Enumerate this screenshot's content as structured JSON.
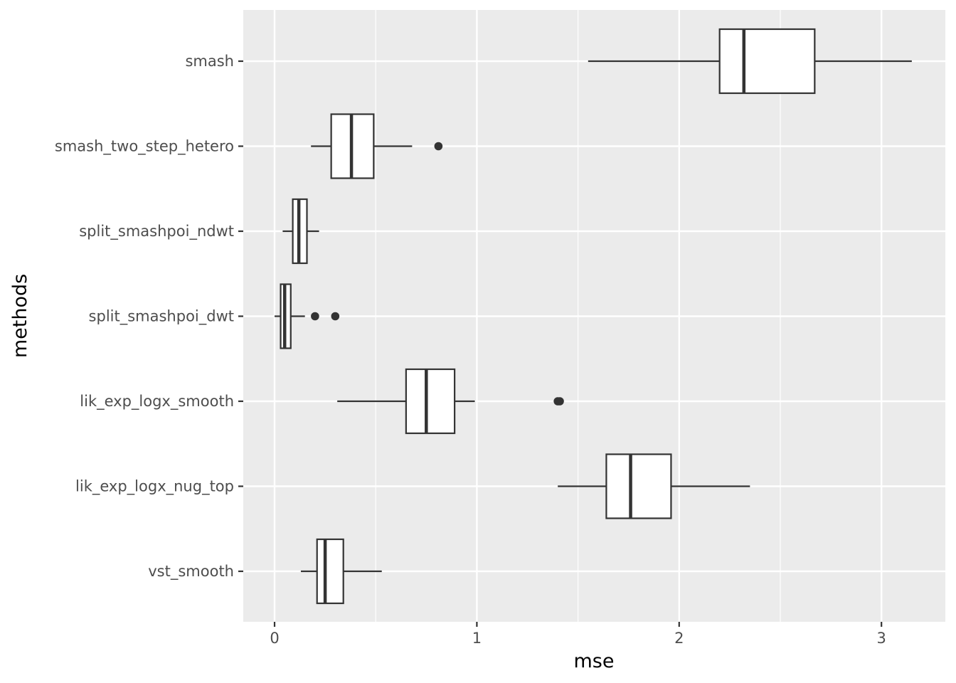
{
  "chart_data": {
    "type": "boxplot",
    "orientation": "horizontal",
    "xlabel": "mse",
    "ylabel": "methods",
    "xlim": [
      -0.155,
      3.3
    ],
    "xticks": [
      0,
      1,
      2,
      3
    ],
    "xtick_labels": [
      "0",
      "1",
      "2",
      "3"
    ],
    "grid": true,
    "colors": {
      "panel": "#ebebeb",
      "grid": "#ffffff",
      "box_fill": "#ffffff",
      "line": "#333333",
      "tick_text": "#4d4d4d",
      "title_text": "#000000"
    },
    "categories": [
      "smash",
      "smash_two_step_hetero",
      "split_smashpoi_ndwt",
      "split_smashpoi_dwt",
      "lik_exp_logx_smooth",
      "lik_exp_logx_nug_top",
      "vst_smooth"
    ],
    "boxes": [
      {
        "name": "smash",
        "lower_whisker": 1.55,
        "q1": 2.2,
        "median": 2.32,
        "q3": 2.67,
        "upper_whisker": 3.15,
        "outliers": []
      },
      {
        "name": "smash_two_step_hetero",
        "lower_whisker": 0.18,
        "q1": 0.28,
        "median": 0.38,
        "q3": 0.49,
        "upper_whisker": 0.68,
        "outliers": [
          0.81
        ]
      },
      {
        "name": "split_smashpoi_ndwt",
        "lower_whisker": 0.04,
        "q1": 0.09,
        "median": 0.12,
        "q3": 0.16,
        "upper_whisker": 0.22,
        "outliers": []
      },
      {
        "name": "split_smashpoi_dwt",
        "lower_whisker": 0.0,
        "q1": 0.03,
        "median": 0.05,
        "q3": 0.08,
        "upper_whisker": 0.15,
        "outliers": [
          0.2,
          0.3
        ]
      },
      {
        "name": "lik_exp_logx_smooth",
        "lower_whisker": 0.31,
        "q1": 0.65,
        "median": 0.75,
        "q3": 0.89,
        "upper_whisker": 0.99,
        "outliers": [
          1.4,
          1.41
        ]
      },
      {
        "name": "lik_exp_logx_nug_top",
        "lower_whisker": 1.4,
        "q1": 1.64,
        "median": 1.76,
        "q3": 1.96,
        "upper_whisker": 2.35,
        "outliers": []
      },
      {
        "name": "vst_smooth",
        "lower_whisker": 0.13,
        "q1": 0.21,
        "median": 0.25,
        "q3": 0.34,
        "upper_whisker": 0.53,
        "outliers": []
      }
    ]
  }
}
